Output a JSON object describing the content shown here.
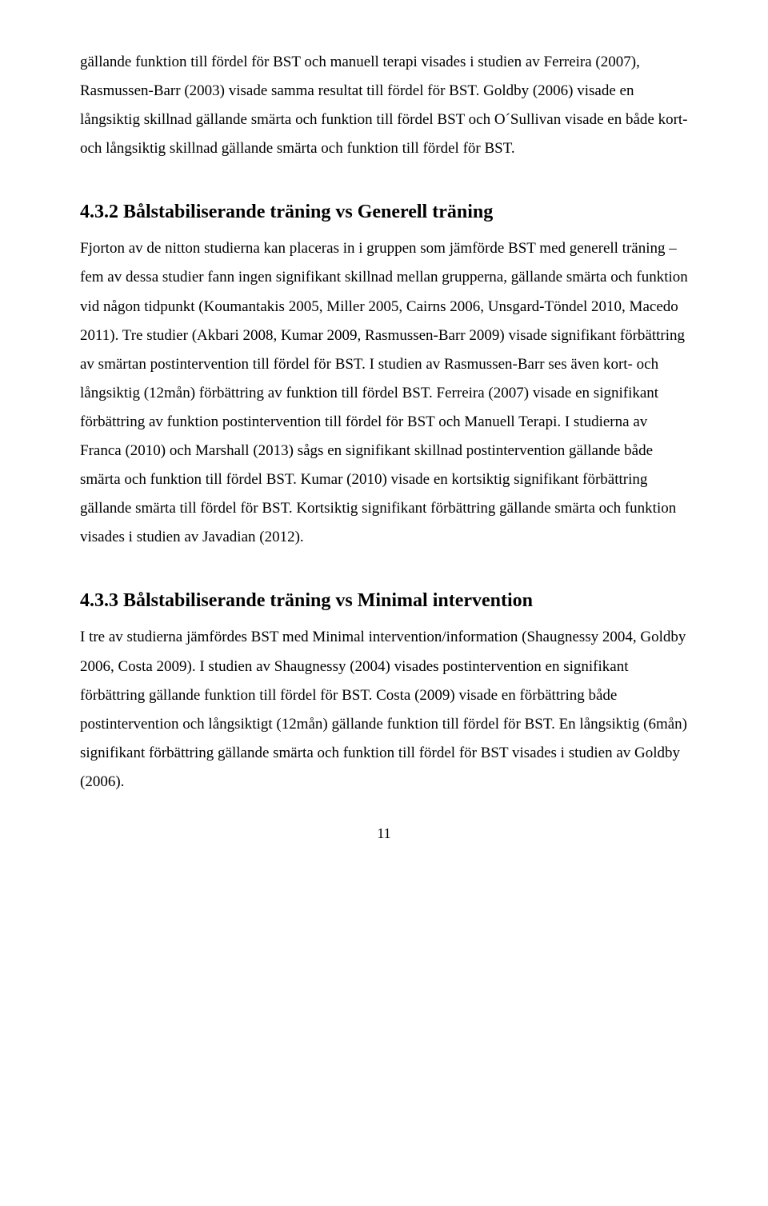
{
  "paragraphs": {
    "p1": "gällande funktion till fördel för BST och manuell terapi visades i studien av Ferreira (2007), Rasmussen-Barr (2003) visade samma resultat till fördel för BST. Goldby (2006) visade en långsiktig skillnad gällande smärta och funktion till fördel BST och O´Sullivan visade en både kort- och långsiktig skillnad gällande smärta och funktion till fördel för BST.",
    "p2": "Fjorton av de nitton studierna kan placeras in i gruppen som jämförde BST med generell träning – fem av dessa studier fann ingen signifikant skillnad mellan grupperna, gällande smärta och funktion vid någon tidpunkt (Koumantakis 2005, Miller 2005, Cairns 2006, Unsgard-Töndel 2010, Macedo 2011). Tre studier (Akbari 2008, Kumar 2009, Rasmussen-Barr 2009) visade signifikant förbättring av smärtan postintervention till fördel för BST. I studien av Rasmussen-Barr ses även kort- och långsiktig (12mån) förbättring av funktion till fördel BST. Ferreira (2007) visade en signifikant förbättring av funktion postintervention till fördel för BST och Manuell Terapi.  I studierna av Franca (2010) och Marshall (2013) sågs en signifikant skillnad postintervention gällande både smärta och funktion till fördel BST. Kumar (2010) visade en kortsiktig signifikant förbättring gällande smärta till fördel för BST. Kortsiktig signifikant förbättring gällande smärta och funktion visades i studien av Javadian (2012).",
    "p3": "I tre av studierna jämfördes BST med Minimal intervention/information (Shaugnessy 2004, Goldby 2006, Costa 2009). I studien av Shaugnessy (2004) visades postintervention en signifikant förbättring gällande funktion till fördel för BST. Costa (2009) visade en förbättring både postintervention och långsiktigt (12mån) gällande funktion till fördel för BST. En långsiktig (6mån) signifikant förbättring gällande smärta och funktion till fördel för BST visades i studien av Goldby (2006)."
  },
  "headings": {
    "h432": "4.3.2  Bålstabiliserande träning vs Generell träning",
    "h433": "4.3.3  Bålstabiliserande träning vs Minimal intervention"
  },
  "pageNumber": "11"
}
